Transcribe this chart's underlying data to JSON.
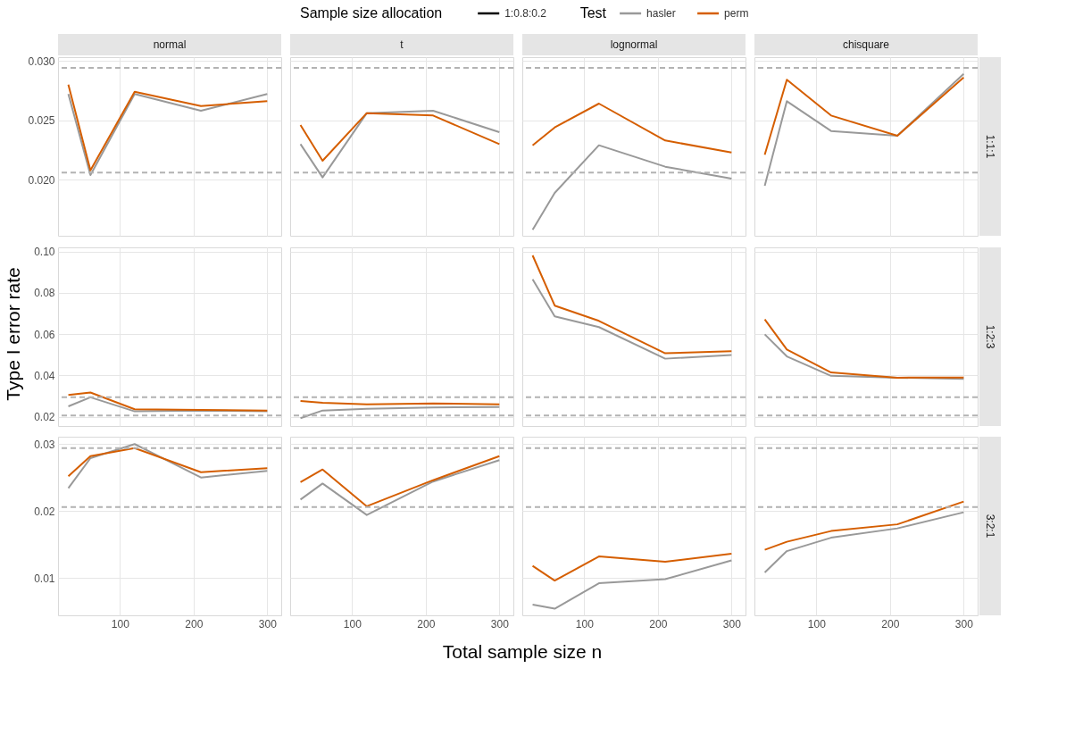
{
  "chart_data": [
    {
      "type": "line",
      "title": "normal",
      "legend": "top",
      "legend_title": "Test",
      "annotations": [
        "Sample size allocation",
        "1:0.8:0.2"
      ],
      "tick_labels": "y",
      "grid": true,
      "x": [
        30,
        60,
        120,
        210,
        300
      ],
      "xlim": [
        16,
        319
      ],
      "xticks": [
        100,
        200,
        300
      ],
      "ylim": [
        0.0153,
        0.0303
      ],
      "yticks": [
        {
          "value": 0.02,
          "label": "0.020"
        },
        0.025,
        {
          "value": 0.03,
          "label": "0.030"
        }
      ],
      "ref_lines": [
        {
          "axis": "y",
          "value": 0.0294,
          "line_style": "dashed",
          "color": "#b3b3b3"
        },
        {
          "axis": "y",
          "value": 0.0206,
          "line_style": "dashed",
          "color": "#b3b3b3"
        }
      ],
      "series": [
        {
          "name": "hasler",
          "color": "#999999",
          "values": [
            0.0272,
            0.0204,
            0.0272,
            0.0258,
            0.0272
          ]
        },
        {
          "name": "perm",
          "color": "#d55e00",
          "values": [
            0.028,
            0.0208,
            0.0274,
            0.0262,
            0.0266
          ]
        }
      ]
    },
    {
      "type": "line",
      "title": "t",
      "tick_labels": false,
      "grid": true,
      "x": [
        30,
        60,
        120,
        210,
        300
      ],
      "xlim": [
        16,
        319
      ],
      "xticks": [
        100,
        200,
        300
      ],
      "ylim": [
        0.0153,
        0.0303
      ],
      "yticks": [
        0.02,
        0.025,
        0.03
      ],
      "ref_lines": [
        {
          "axis": "y",
          "value": 0.0294,
          "line_style": "dashed",
          "color": "#b3b3b3"
        },
        {
          "axis": "y",
          "value": 0.0206,
          "line_style": "dashed",
          "color": "#b3b3b3"
        }
      ],
      "series": [
        {
          "color": "#999999",
          "values": [
            0.023,
            0.0202,
            0.0256,
            0.0258,
            0.024
          ]
        },
        {
          "color": "#d55e00",
          "values": [
            0.0246,
            0.0216,
            0.0256,
            0.0254,
            0.023
          ]
        }
      ]
    },
    {
      "type": "line",
      "title": "lognormal",
      "tick_labels": false,
      "grid": true,
      "x": [
        30,
        60,
        120,
        210,
        300
      ],
      "xlim": [
        16,
        319
      ],
      "xticks": [
        100,
        200,
        300
      ],
      "ylim": [
        0.0153,
        0.0303
      ],
      "yticks": [
        0.02,
        0.025,
        0.03
      ],
      "ref_lines": [
        {
          "axis": "y",
          "value": 0.0294,
          "line_style": "dashed",
          "color": "#b3b3b3"
        },
        {
          "axis": "y",
          "value": 0.0206,
          "line_style": "dashed",
          "color": "#b3b3b3"
        }
      ],
      "series": [
        {
          "color": "#999999",
          "values": [
            0.0158,
            0.0189,
            0.0229,
            0.0211,
            0.0201
          ]
        },
        {
          "color": "#d55e00",
          "values": [
            0.0229,
            0.0244,
            0.0264,
            0.0233,
            0.0223
          ]
        }
      ]
    },
    {
      "type": "line",
      "title": "chisquare",
      "y2label": "1:1:1",
      "tick_labels": false,
      "grid": true,
      "x": [
        30,
        60,
        120,
        210,
        300
      ],
      "xlim": [
        16,
        319
      ],
      "xticks": [
        100,
        200,
        300
      ],
      "ylim": [
        0.0153,
        0.0303
      ],
      "yticks": [
        0.02,
        0.025,
        0.03
      ],
      "ref_lines": [
        {
          "axis": "y",
          "value": 0.0294,
          "line_style": "dashed",
          "color": "#b3b3b3"
        },
        {
          "axis": "y",
          "value": 0.0206,
          "line_style": "dashed",
          "color": "#b3b3b3"
        }
      ],
      "series": [
        {
          "color": "#999999",
          "values": [
            0.0195,
            0.0266,
            0.0241,
            0.0237,
            0.0289
          ]
        },
        {
          "color": "#d55e00",
          "values": [
            0.0221,
            0.0284,
            0.0254,
            0.0237,
            0.0286
          ]
        }
      ]
    },
    {
      "type": "line",
      "ylabel": "Type I error rate",
      "tick_labels": "y",
      "grid": true,
      "x": [
        30,
        60,
        120,
        210,
        300
      ],
      "xlim": [
        16,
        319
      ],
      "xticks": [
        100,
        200,
        300
      ],
      "ylim": [
        0.0155,
        0.102
      ],
      "yticks": [
        0.02,
        0.04,
        0.06,
        0.08,
        {
          "value": 0.1,
          "label": "0.10"
        }
      ],
      "ref_lines": [
        {
          "axis": "y",
          "value": 0.0294,
          "line_style": "dashed",
          "color": "#b3b3b3"
        },
        {
          "axis": "y",
          "value": 0.0206,
          "line_style": "dashed",
          "color": "#b3b3b3"
        }
      ],
      "series": [
        {
          "color": "#999999",
          "values": [
            0.025,
            0.0294,
            0.0226,
            0.023,
            0.0226
          ]
        },
        {
          "color": "#d55e00",
          "values": [
            0.0305,
            0.0317,
            0.0236,
            0.0233,
            0.023
          ]
        }
      ]
    },
    {
      "type": "line",
      "tick_labels": false,
      "grid": true,
      "x": [
        30,
        60,
        120,
        210,
        300
      ],
      "xlim": [
        16,
        319
      ],
      "xticks": [
        100,
        200,
        300
      ],
      "ylim": [
        0.0155,
        0.102
      ],
      "yticks": [
        0.02,
        0.04,
        0.06,
        0.08,
        0.1
      ],
      "ref_lines": [
        {
          "axis": "y",
          "value": 0.0294,
          "line_style": "dashed",
          "color": "#b3b3b3"
        },
        {
          "axis": "y",
          "value": 0.0206,
          "line_style": "dashed",
          "color": "#b3b3b3"
        }
      ],
      "series": [
        {
          "color": "#999999",
          "values": [
            0.0193,
            0.023,
            0.0238,
            0.0245,
            0.0247
          ]
        },
        {
          "color": "#d55e00",
          "values": [
            0.0276,
            0.0267,
            0.026,
            0.0264,
            0.026
          ]
        }
      ]
    },
    {
      "type": "line",
      "tick_labels": false,
      "grid": true,
      "x": [
        30,
        60,
        120,
        210,
        300
      ],
      "xlim": [
        16,
        319
      ],
      "xticks": [
        100,
        200,
        300
      ],
      "ylim": [
        0.0155,
        0.102
      ],
      "yticks": [
        0.02,
        0.04,
        0.06,
        0.08,
        0.1
      ],
      "ref_lines": [
        {
          "axis": "y",
          "value": 0.0294,
          "line_style": "dashed",
          "color": "#b3b3b3"
        },
        {
          "axis": "y",
          "value": 0.0206,
          "line_style": "dashed",
          "color": "#b3b3b3"
        }
      ],
      "series": [
        {
          "color": "#999999",
          "values": [
            0.0865,
            0.0686,
            0.0634,
            0.0481,
            0.0499
          ]
        },
        {
          "color": "#d55e00",
          "values": [
            0.0981,
            0.0738,
            0.0664,
            0.0507,
            0.0517
          ]
        }
      ]
    },
    {
      "type": "line",
      "y2label": "1:2:3",
      "tick_labels": false,
      "grid": true,
      "x": [
        30,
        60,
        120,
        210,
        300
      ],
      "xlim": [
        16,
        319
      ],
      "xticks": [
        100,
        200,
        300
      ],
      "ylim": [
        0.0155,
        0.102
      ],
      "yticks": [
        0.02,
        0.04,
        0.06,
        0.08,
        0.1
      ],
      "ref_lines": [
        {
          "axis": "y",
          "value": 0.0294,
          "line_style": "dashed",
          "color": "#b3b3b3"
        },
        {
          "axis": "y",
          "value": 0.0206,
          "line_style": "dashed",
          "color": "#b3b3b3"
        }
      ],
      "series": [
        {
          "color": "#999999",
          "values": [
            0.0599,
            0.0492,
            0.0398,
            0.0389,
            0.0383
          ]
        },
        {
          "color": "#d55e00",
          "values": [
            0.0671,
            0.0525,
            0.0414,
            0.0389,
            0.039
          ]
        }
      ]
    },
    {
      "type": "line",
      "grid": true,
      "x": [
        30,
        60,
        120,
        210,
        300
      ],
      "xlim": [
        16,
        319
      ],
      "xticks": [
        100,
        200,
        300
      ],
      "ylim": [
        0.0044,
        0.0311
      ],
      "yticks": [
        0.01,
        0.02,
        0.03
      ],
      "ref_lines": [
        {
          "axis": "y",
          "value": 0.0294,
          "line_style": "dashed",
          "color": "#b3b3b3"
        },
        {
          "axis": "y",
          "value": 0.0206,
          "line_style": "dashed",
          "color": "#b3b3b3"
        }
      ],
      "series": [
        {
          "color": "#999999",
          "values": [
            0.0234,
            0.0279,
            0.03,
            0.025,
            0.026
          ]
        },
        {
          "color": "#d55e00",
          "values": [
            0.0252,
            0.0282,
            0.0294,
            0.0258,
            0.0264
          ]
        }
      ]
    },
    {
      "type": "line",
      "xlabel": "Total sample size n",
      "tick_labels": "x",
      "grid": true,
      "x": [
        30,
        60,
        120,
        210,
        300
      ],
      "xlim": [
        16,
        319
      ],
      "xticks": [
        100,
        200,
        300
      ],
      "ylim": [
        0.0044,
        0.0311
      ],
      "yticks": [
        0.01,
        0.02,
        0.03
      ],
      "ref_lines": [
        {
          "axis": "y",
          "value": 0.0294,
          "line_style": "dashed",
          "color": "#b3b3b3"
        },
        {
          "axis": "y",
          "value": 0.0206,
          "line_style": "dashed",
          "color": "#b3b3b3"
        }
      ],
      "series": [
        {
          "color": "#999999",
          "values": [
            0.0217,
            0.0241,
            0.0194,
            0.0244,
            0.0276
          ]
        },
        {
          "color": "#d55e00",
          "values": [
            0.0243,
            0.0262,
            0.0207,
            0.0246,
            0.0282
          ]
        }
      ]
    },
    {
      "type": "line",
      "tick_labels": "x",
      "grid": true,
      "x": [
        30,
        60,
        120,
        210,
        300
      ],
      "xlim": [
        16,
        319
      ],
      "xticks": [
        100,
        200,
        300
      ],
      "ylim": [
        0.0044,
        0.0311
      ],
      "yticks": [
        0.01,
        0.02,
        0.03
      ],
      "ref_lines": [
        {
          "axis": "y",
          "value": 0.0294,
          "line_style": "dashed",
          "color": "#b3b3b3"
        },
        {
          "axis": "y",
          "value": 0.0206,
          "line_style": "dashed",
          "color": "#b3b3b3"
        }
      ],
      "series": [
        {
          "color": "#999999",
          "values": [
            0.006,
            0.0054,
            0.0092,
            0.0098,
            0.0126
          ]
        },
        {
          "color": "#d55e00",
          "values": [
            0.0118,
            0.0096,
            0.0132,
            0.0124,
            0.0136
          ]
        }
      ]
    },
    {
      "type": "line",
      "y2label": "3:2:1",
      "tick_labels": "x",
      "grid": true,
      "x": [
        30,
        60,
        120,
        210,
        300
      ],
      "xlim": [
        16,
        319
      ],
      "xticks": [
        100,
        200,
        300
      ],
      "ylim": [
        0.0044,
        0.0311
      ],
      "yticks": [
        0.01,
        0.02,
        0.03
      ],
      "ref_lines": [
        {
          "axis": "y",
          "value": 0.0294,
          "line_style": "dashed",
          "color": "#b3b3b3"
        },
        {
          "axis": "y",
          "value": 0.0206,
          "line_style": "dashed",
          "color": "#b3b3b3"
        }
      ],
      "series": [
        {
          "color": "#999999",
          "values": [
            0.0108,
            0.014,
            0.016,
            0.0174,
            0.0198
          ]
        },
        {
          "color": "#d55e00",
          "values": [
            0.0142,
            0.0154,
            0.017,
            0.018,
            0.0214
          ]
        }
      ]
    }
  ]
}
